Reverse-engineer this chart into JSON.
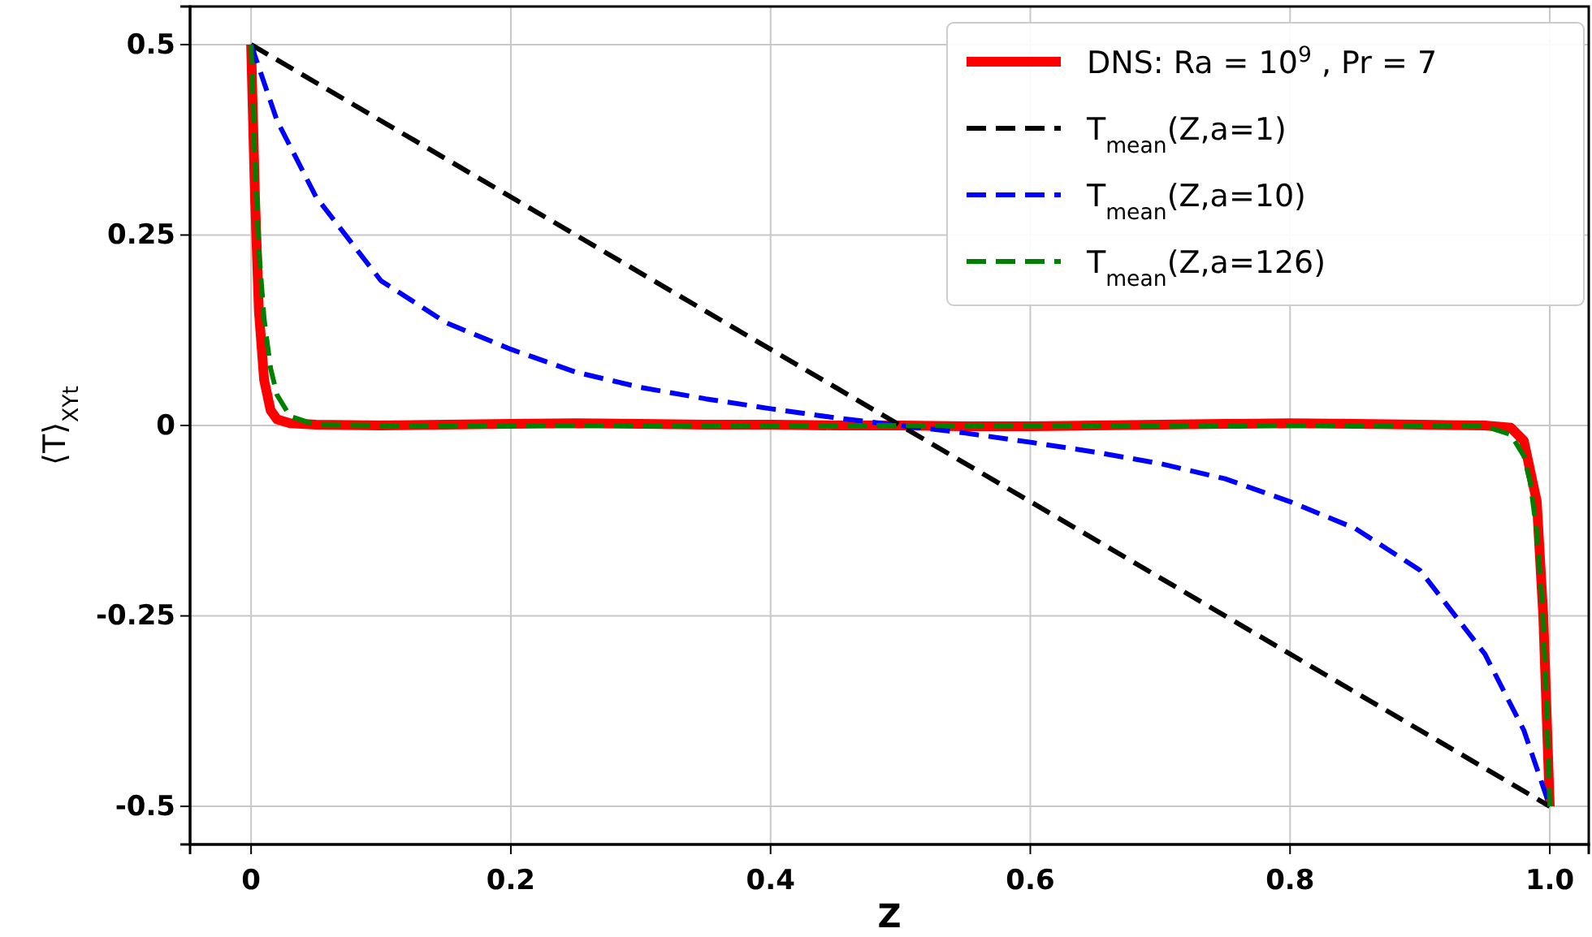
{
  "chart_data": {
    "type": "line",
    "xlabel": "Z",
    "ylabel": "⟨T⟩$_{XYt}$",
    "xlim": [
      -0.047,
      1.03
    ],
    "ylim": [
      -0.55,
      0.55
    ],
    "xticks": [
      0,
      0.2,
      0.4,
      0.6,
      0.8,
      {
        "value": 1,
        "label": "1.0"
      }
    ],
    "yticks": [
      -0.5,
      -0.25,
      0,
      0.25,
      0.5
    ],
    "grid": true,
    "legend": "top right",
    "marker": "none",
    "series": [
      {
        "name": "DNS: Ra = 10$^{9}$ , Pr = 7",
        "color": "#ff0000",
        "line_style": "solid",
        "x": [
          0,
          0.003,
          0.006,
          0.01,
          0.015,
          0.02,
          0.03,
          0.05,
          0.1,
          0.15,
          0.2,
          0.25,
          0.3,
          0.35,
          0.4,
          0.45,
          0.5,
          0.55,
          0.6,
          0.65,
          0.7,
          0.75,
          0.8,
          0.85,
          0.9,
          0.95,
          0.97,
          0.98,
          0.99,
          0.995,
          1.0
        ],
        "values": [
          0.5,
          0.3,
          0.15,
          0.06,
          0.02,
          0.008,
          0.003,
          0.001,
          0,
          0.001,
          0.002,
          0.003,
          0.002,
          0.001,
          0.001,
          0,
          0,
          -0.001,
          -0.001,
          0,
          0.001,
          0.002,
          0.003,
          0.002,
          0.001,
          0,
          -0.003,
          -0.02,
          -0.1,
          -0.25,
          -0.5
        ]
      },
      {
        "name": "T$_{mean}$(Z,a=1)",
        "color": "#000000",
        "line_style": "dashed",
        "x": [
          0,
          1
        ],
        "values": [
          0.5,
          -0.5
        ]
      },
      {
        "name": "T$_{mean}$(Z,a=10)",
        "color": "#0000ff",
        "line_style": "dashed",
        "x": [
          0,
          0.02,
          0.05,
          0.1,
          0.15,
          0.2,
          0.25,
          0.3,
          0.35,
          0.4,
          0.45,
          0.5,
          0.55,
          0.6,
          0.65,
          0.7,
          0.75,
          0.8,
          0.85,
          0.9,
          0.95,
          0.98,
          1.0
        ],
        "values": [
          0.5,
          0.4,
          0.3,
          0.19,
          0.135,
          0.1,
          0.07,
          0.05,
          0.035,
          0.022,
          0.01,
          0,
          -0.01,
          -0.022,
          -0.035,
          -0.05,
          -0.07,
          -0.1,
          -0.135,
          -0.19,
          -0.3,
          -0.4,
          -0.5
        ]
      },
      {
        "name": "T$_{mean}$(Z,a=126)",
        "color": "#008000",
        "line_style": "dashed",
        "x": [
          0,
          0.003,
          0.006,
          0.01,
          0.015,
          0.02,
          0.03,
          0.05,
          0.1,
          0.5,
          0.9,
          0.95,
          0.97,
          0.98,
          0.985,
          0.99,
          0.994,
          0.997,
          1.0
        ],
        "values": [
          0.5,
          0.34,
          0.23,
          0.14,
          0.075,
          0.04,
          0.012,
          0.001,
          0,
          0,
          0,
          -0.001,
          -0.012,
          -0.04,
          -0.075,
          -0.14,
          -0.23,
          -0.34,
          -0.5
        ]
      }
    ]
  }
}
